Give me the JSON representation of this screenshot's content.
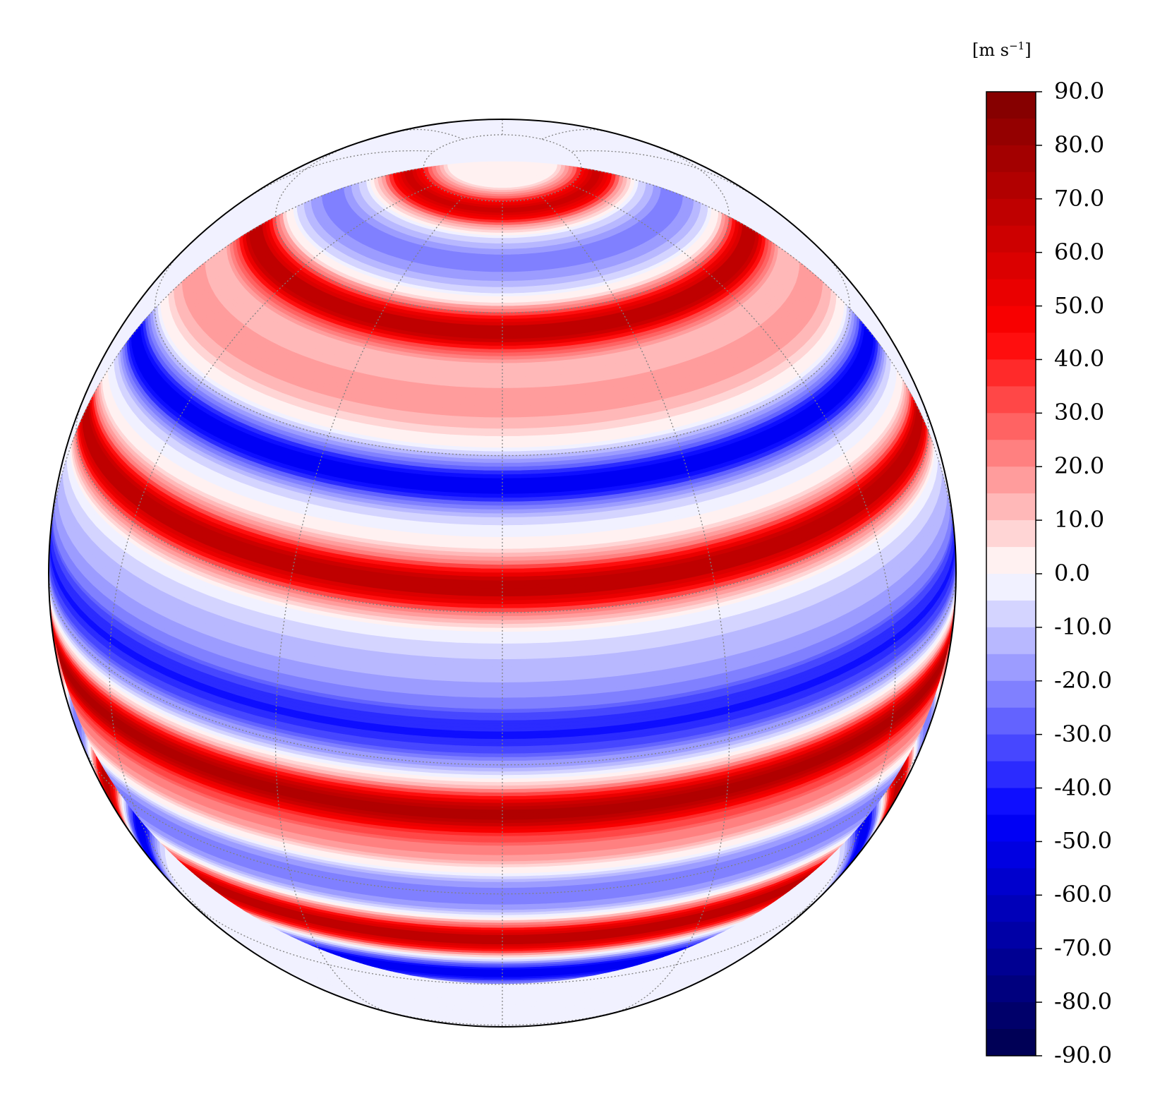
{
  "colorbar": {
    "unit_text": "[m s",
    "unit_exponent": "−1",
    "unit_close": "]",
    "min": -90,
    "max": 90,
    "step": 5,
    "ticks": [
      "90.0",
      "80.0",
      "70.0",
      "60.0",
      "50.0",
      "40.0",
      "30.0",
      "20.0",
      "10.0",
      "0.0",
      "-10.0",
      "-20.0",
      "-30.0",
      "-40.0",
      "-50.0",
      "-60.0",
      "-70.0",
      "-80.0",
      "-90.0"
    ]
  },
  "map": {
    "projection": "orthographic",
    "view_center_latitude_deg": 25,
    "graticule_spacing_deg": 30,
    "zonal_jets_ms": [
      {
        "latitude_deg": 78,
        "speed": 62
      },
      {
        "latitude_deg": 68,
        "speed": -22
      },
      {
        "latitude_deg": 57,
        "speed": 70
      },
      {
        "latitude_deg": 47,
        "speed": 18
      },
      {
        "latitude_deg": 36,
        "speed": -48
      },
      {
        "latitude_deg": 23,
        "speed": 70
      },
      {
        "latitude_deg": 12,
        "speed": -12
      },
      {
        "latitude_deg": 4,
        "speed": -40
      },
      {
        "latitude_deg": -7,
        "speed": 70
      },
      {
        "latitude_deg": -13,
        "speed": 22
      },
      {
        "latitude_deg": -20,
        "speed": -25
      },
      {
        "latitude_deg": -29,
        "speed": 70
      },
      {
        "latitude_deg": -37,
        "speed": -48
      }
    ]
  },
  "colors": {
    "positive": "#ff0000",
    "negative": "#0000ff",
    "zero": "#f5f5ff"
  }
}
